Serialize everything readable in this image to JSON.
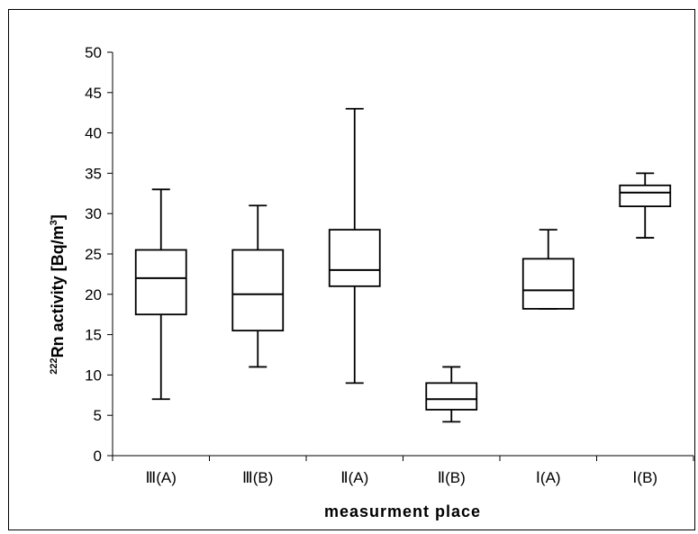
{
  "chart_data": {
    "type": "boxplot",
    "title": "",
    "xlabel": "measurment place",
    "ylabel": {
      "superscript_prefix": "222",
      "main": "Rn activity [Bq/m",
      "superscript_unit": "3",
      "close": "]"
    },
    "ylim": [
      0,
      50
    ],
    "yticks": [
      0,
      5,
      10,
      15,
      20,
      25,
      30,
      35,
      40,
      45,
      50
    ],
    "grid": false,
    "legend": "none",
    "categories": [
      "Ⅲ(A)",
      "Ⅲ(B)",
      "Ⅱ(A)",
      "Ⅱ(B)",
      "Ⅰ(A)",
      "Ⅰ(B)"
    ],
    "boxes": [
      {
        "category": "Ⅲ(A)",
        "min": 7,
        "q1": 17.5,
        "median": 22,
        "q3": 25.5,
        "max": 33
      },
      {
        "category": "Ⅲ(B)",
        "min": 11,
        "q1": 15.5,
        "median": 20,
        "q3": 25.5,
        "max": 31
      },
      {
        "category": "Ⅱ(A)",
        "min": 9,
        "q1": 21,
        "median": 23,
        "q3": 28,
        "max": 43
      },
      {
        "category": "Ⅱ(B)",
        "min": 4.2,
        "q1": 5.7,
        "median": 7,
        "q3": 9,
        "max": 11
      },
      {
        "category": "Ⅰ(A)",
        "min": 18.2,
        "q1": 18.2,
        "median": 20.5,
        "q3": 24.4,
        "max": 28
      },
      {
        "category": "Ⅰ(B)",
        "min": 27,
        "q1": 30.9,
        "median": 32.6,
        "q3": 33.5,
        "max": 35
      }
    ],
    "colors": {
      "stroke": "#000000",
      "fill": "#ffffff"
    }
  }
}
